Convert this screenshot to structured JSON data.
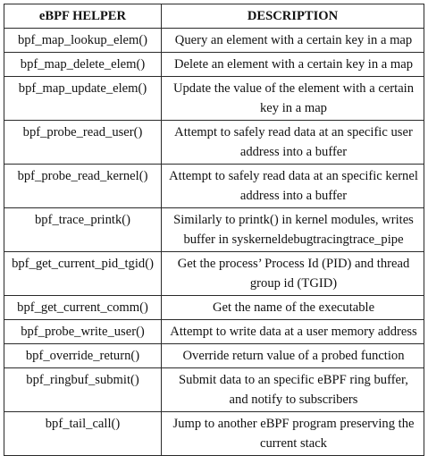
{
  "table": {
    "headers": [
      "eBPF HELPER",
      "DESCRIPTION"
    ],
    "rows": [
      {
        "helper": "bpf_map_lookup_elem()",
        "description": "Query an element with a certain key in a map"
      },
      {
        "helper": "bpf_map_delete_elem()",
        "description": "Delete an element with a certain key in a map"
      },
      {
        "helper": "bpf_map_update_elem()",
        "description": "Update the value of the element with a certain key in a map"
      },
      {
        "helper": "bpf_probe_read_user()",
        "description": "Attempt to safely read data at an specific user address into a buffer"
      },
      {
        "helper": "bpf_probe_read_kernel()",
        "description": "Attempt to safely read data at an specific kernel address into a buffer"
      },
      {
        "helper": "bpf_trace_printk()",
        "description": "Similarly to printk() in kernel modules, writes buffer in syskerneldebugtracingtrace_pipe"
      },
      {
        "helper": "bpf_get_current_pid_tgid()",
        "description": "Get the process’ Process Id (PID) and thread group id (TGID)"
      },
      {
        "helper": "bpf_get_current_comm()",
        "description": "Get the name of the executable"
      },
      {
        "helper": "bpf_probe_write_user()",
        "description": "Attempt to write data at a user memory address"
      },
      {
        "helper": "bpf_override_return()",
        "description": "Override return value of a probed function"
      },
      {
        "helper": "bpf_ringbuf_submit()",
        "description": "Submit data to an specific eBPF ring buffer, and notify to subscribers"
      },
      {
        "helper": "bpf_tail_call()",
        "description": "Jump to another eBPF program preserving the current stack"
      }
    ]
  }
}
